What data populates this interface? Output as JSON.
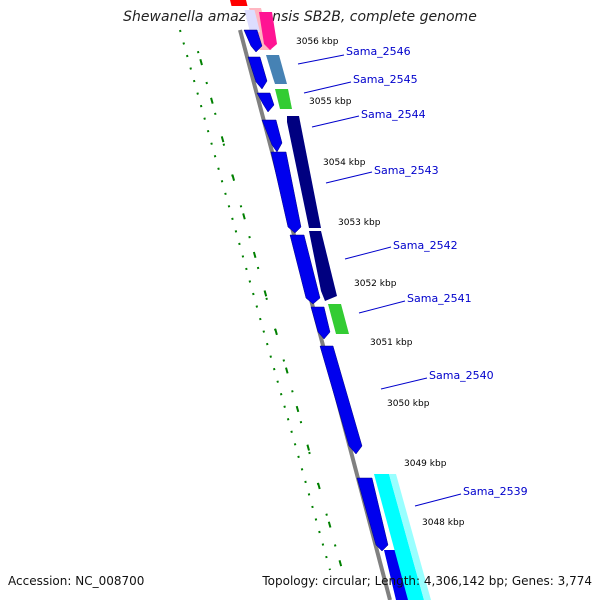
{
  "title": "Shewanella amazonensis SB2B, complete genome",
  "footer": {
    "accession": "Accession: NC_008700",
    "summary": "Topology: circular; Length: 4,306,142 bp; Genes: 3,774"
  },
  "colors": {
    "backbone": "#808080",
    "forward_cds": "#0000ee",
    "reverse_cds": "#000080",
    "rna_green": "#33cc33",
    "steel_blue": "#4682b4",
    "pink": "#ff1493",
    "light_pink": "#ffb6c1",
    "red": "#ff0000",
    "cyan": "#00ffff",
    "dotted_track": "#008000",
    "label_text": "#0000cc"
  },
  "kbp_ticks": [
    "3056 kbp",
    "3055 kbp",
    "3054 kbp",
    "3053 kbp",
    "3052 kbp",
    "3051 kbp",
    "3050 kbp",
    "3049 kbp",
    "3048 kbp"
  ],
  "gene_labels": [
    "Sama_2546",
    "Sama_2545",
    "Sama_2544",
    "Sama_2543",
    "Sama_2542",
    "Sama_2541",
    "Sama_2540",
    "Sama_2539"
  ]
}
